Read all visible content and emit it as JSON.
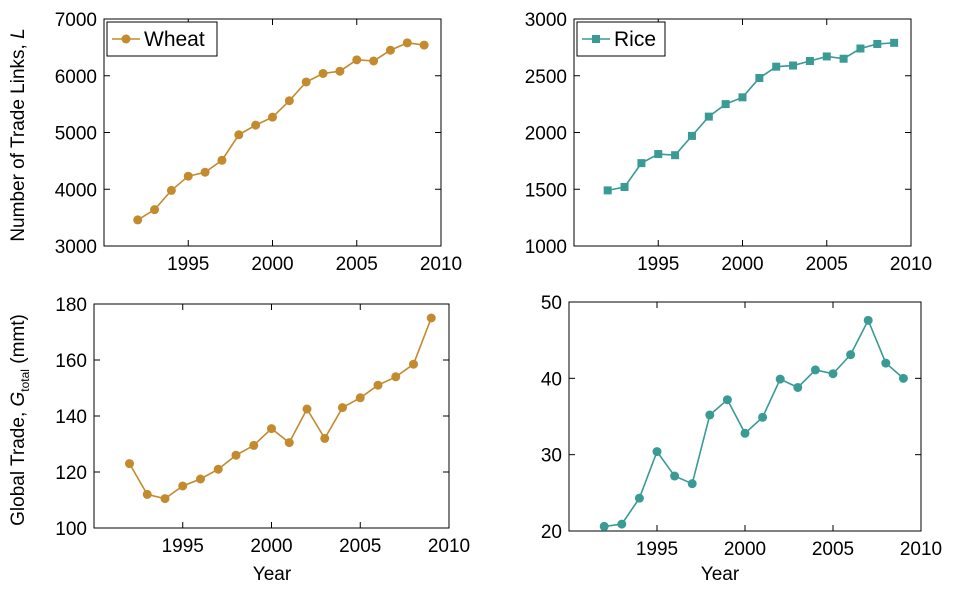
{
  "figure": {
    "ylabel_top": "Number of Trade Links, ",
    "ylabel_top_var": "L",
    "ylabel_bottom": "Global Trade, ",
    "ylabel_bottom_var": "G",
    "ylabel_bottom_sub": "total",
    "ylabel_bottom_unit": " (mmt)",
    "xlabel": "Year"
  },
  "colors": {
    "wheat": "#c38a2e",
    "rice": "#3a9a94"
  },
  "chart_data": [
    {
      "id": "wheat-links",
      "type": "line",
      "marker": "circle",
      "color": "wheat",
      "legend": "Wheat",
      "x": [
        1992,
        1993,
        1994,
        1995,
        1996,
        1997,
        1998,
        1999,
        2000,
        2001,
        2002,
        2003,
        2004,
        2005,
        2006,
        2007,
        2008,
        2009
      ],
      "y": [
        3460,
        3640,
        3980,
        4230,
        4300,
        4510,
        4960,
        5130,
        5270,
        5560,
        5890,
        6040,
        6080,
        6280,
        6260,
        6450,
        6580,
        6540
      ],
      "xlim": [
        1990,
        2010
      ],
      "ylim": [
        3000,
        7000
      ],
      "xticks": [
        1995,
        2000,
        2005,
        2010
      ],
      "yticks": [
        3000,
        4000,
        5000,
        6000,
        7000
      ],
      "grid": false,
      "legend_position": "top-left"
    },
    {
      "id": "rice-links",
      "type": "line",
      "marker": "square",
      "color": "rice",
      "legend": "Rice",
      "x": [
        1992,
        1993,
        1994,
        1995,
        1996,
        1997,
        1998,
        1999,
        2000,
        2001,
        2002,
        2003,
        2004,
        2005,
        2006,
        2007,
        2008,
        2009
      ],
      "y": [
        1490,
        1520,
        1730,
        1810,
        1800,
        1970,
        2140,
        2250,
        2310,
        2480,
        2580,
        2590,
        2630,
        2670,
        2650,
        2740,
        2780,
        2790
      ],
      "xlim": [
        1990,
        2010
      ],
      "ylim": [
        1000,
        3000
      ],
      "xticks": [
        1995,
        2000,
        2005,
        2010
      ],
      "yticks": [
        1000,
        1500,
        2000,
        2500,
        3000
      ],
      "grid": false,
      "legend_position": "top-left"
    },
    {
      "id": "wheat-trade",
      "type": "line",
      "marker": "circle",
      "color": "wheat",
      "x": [
        1992,
        1993,
        1994,
        1995,
        1996,
        1997,
        1998,
        1999,
        2000,
        2001,
        2002,
        2003,
        2004,
        2005,
        2006,
        2007,
        2008,
        2009
      ],
      "y": [
        123,
        112,
        110.5,
        115,
        117.5,
        121,
        126,
        129.5,
        135.5,
        130.5,
        142.5,
        132,
        143,
        146.5,
        151,
        154,
        158.5,
        175
      ],
      "xlim": [
        1990,
        2010
      ],
      "ylim": [
        100,
        180
      ],
      "xticks": [
        1995,
        2000,
        2005,
        2010
      ],
      "yticks": [
        100,
        120,
        140,
        160,
        180
      ],
      "grid": false
    },
    {
      "id": "rice-trade",
      "type": "line",
      "marker": "circle",
      "color": "rice",
      "x": [
        1992,
        1993,
        1994,
        1995,
        1996,
        1997,
        1998,
        1999,
        2000,
        2001,
        2002,
        2003,
        2004,
        2005,
        2006,
        2007,
        2008,
        2009
      ],
      "y": [
        20.6,
        20.9,
        24.3,
        30.4,
        27.2,
        26.2,
        35.2,
        37.2,
        32.8,
        34.9,
        39.9,
        38.8,
        41.1,
        40.6,
        43.1,
        47.6,
        42.0,
        40.0
      ],
      "xlim": [
        1990,
        2010
      ],
      "ylim": [
        20,
        50
      ],
      "xticks": [
        1995,
        2000,
        2005,
        2010
      ],
      "yticks": [
        20,
        30,
        40,
        50
      ],
      "grid": false
    }
  ]
}
